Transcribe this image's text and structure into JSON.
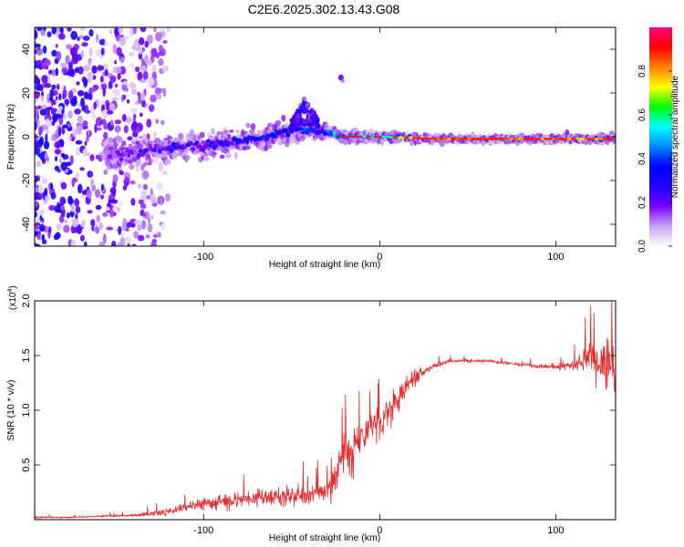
{
  "title": "C2E6.2025.302.13.43.G08",
  "chart_data": [
    {
      "type": "heatmap",
      "xlabel": "Height of straight line (km)",
      "ylabel": "Frequency (Hz)",
      "xlim": [
        -196,
        134
      ],
      "ylim": [
        -50,
        50
      ],
      "xticks": [
        -100,
        0,
        100
      ],
      "xtick_labels": [
        "-100",
        "0",
        "100"
      ],
      "yticks": [
        -40,
        -20,
        0,
        20,
        40
      ],
      "ytick_labels": [
        "-40",
        "-20",
        "0",
        "20",
        "40"
      ],
      "colorbar": {
        "label": "Normalized spectral amplitude",
        "range": [
          0,
          1
        ],
        "ticks": [
          0.0,
          0.2,
          0.4,
          0.6,
          0.8
        ],
        "tick_labels": [
          "0.0",
          "0.2",
          "0.4",
          "0.6",
          "0.8"
        ],
        "colormap": [
          "#ffffff",
          "#c9a3f5",
          "#7a00ff",
          "#2200ff",
          "#0000ff",
          "#0088ff",
          "#00ffff",
          "#00ff00",
          "#ffff00",
          "#ff8000",
          "#ff0000",
          "#ff0080"
        ]
      },
      "ridge": [
        {
          "x": -155,
          "center": -9,
          "halfwidth": 8,
          "amp": 0.15
        },
        {
          "x": -130,
          "center": -6,
          "halfwidth": 7,
          "amp": 0.25
        },
        {
          "x": -100,
          "center": -4,
          "halfwidth": 6,
          "amp": 0.3
        },
        {
          "x": -70,
          "center": -1,
          "halfwidth": 5,
          "amp": 0.35
        },
        {
          "x": -50,
          "center": 3,
          "halfwidth": 6,
          "amp": 0.35
        },
        {
          "x": -35,
          "center": 3,
          "halfwidth": 4,
          "amp": 0.4
        },
        {
          "x": -20,
          "center": 0,
          "halfwidth": 3,
          "amp": 0.55
        },
        {
          "x": 0,
          "center": 0,
          "halfwidth": 2.5,
          "amp": 0.6
        },
        {
          "x": 30,
          "center": -1,
          "halfwidth": 1.5,
          "amp": 0.85
        },
        {
          "x": 80,
          "center": -1,
          "halfwidth": 1.5,
          "amp": 0.9
        },
        {
          "x": 110,
          "center": -1,
          "halfwidth": 2,
          "amp": 0.8
        },
        {
          "x": 134,
          "center": -1,
          "halfwidth": 2,
          "amp": 0.85
        }
      ],
      "features": [
        {
          "name": "upward-bump",
          "x": [
            -50,
            -35
          ],
          "freq": [
            5,
            18
          ],
          "amp": 0.25
        },
        {
          "name": "isolated-blob",
          "x": -22,
          "freq": 27,
          "amp": 0.2
        },
        {
          "name": "noise-region",
          "x": [
            -196,
            -120
          ],
          "freq": [
            -50,
            50
          ],
          "amp": 0.25
        }
      ]
    },
    {
      "type": "line",
      "xlabel": "Height of straight line (km)",
      "ylabel": "SNR (10 * v/v)",
      "y_multiplier_label": "(x10",
      "y_multiplier_exp": "4",
      "y_multiplier_close": ")",
      "xlim": [
        -196,
        134
      ],
      "ylim": [
        0,
        2.0
      ],
      "xticks": [
        -100,
        0,
        100
      ],
      "xtick_labels": [
        "-100",
        "0",
        "100"
      ],
      "yticks": [
        0.5,
        1.0,
        1.5,
        2.0
      ],
      "ytick_labels": [
        "0.5",
        "1.0",
        "1.5",
        "2.0"
      ],
      "color": "#e8282a",
      "series": [
        {
          "name": "SNR",
          "x": [
            -196,
            -180,
            -160,
            -140,
            -125,
            -110,
            -95,
            -80,
            -65,
            -50,
            -35,
            -27,
            -25,
            -22,
            -20,
            -18,
            -16,
            -14,
            -10,
            -5,
            0,
            5,
            10,
            15,
            20,
            30,
            40,
            60,
            80,
            90,
            100,
            110,
            115,
            120,
            125,
            130,
            134
          ],
          "y": [
            0.02,
            0.02,
            0.03,
            0.04,
            0.06,
            0.12,
            0.15,
            0.18,
            0.2,
            0.22,
            0.24,
            0.3,
            0.4,
            0.5,
            0.55,
            0.6,
            0.5,
            0.65,
            0.75,
            0.85,
            0.9,
            1.0,
            1.1,
            1.2,
            1.3,
            1.4,
            1.45,
            1.45,
            1.42,
            1.4,
            1.4,
            1.42,
            1.45,
            1.5,
            1.45,
            1.45,
            1.4
          ],
          "noise": [
            0.01,
            0.01,
            0.01,
            0.02,
            0.04,
            0.06,
            0.08,
            0.09,
            0.1,
            0.11,
            0.12,
            0.14,
            0.2,
            0.22,
            0.3,
            0.3,
            0.3,
            0.25,
            0.2,
            0.2,
            0.2,
            0.2,
            0.18,
            0.15,
            0.1,
            0.04,
            0.02,
            0.02,
            0.02,
            0.02,
            0.03,
            0.06,
            0.12,
            0.2,
            0.25,
            0.3,
            0.3
          ]
        }
      ]
    }
  ]
}
